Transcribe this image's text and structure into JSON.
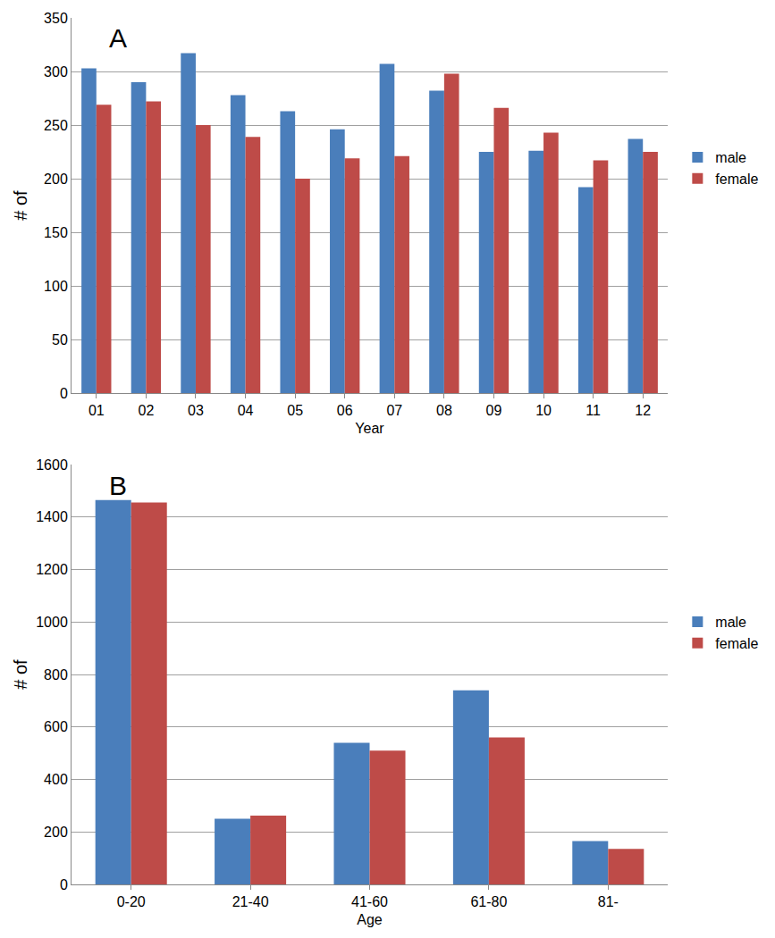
{
  "chart_data": [
    {
      "type": "bar",
      "annotations": [
        "A"
      ],
      "x_label": "Year",
      "y_label": "# of",
      "categories": [
        "01",
        "02",
        "03",
        "04",
        "05",
        "06",
        "07",
        "08",
        "09",
        "10",
        "11",
        "12"
      ],
      "series": [
        {
          "name": "male",
          "color": "#4a7ebb",
          "values": [
            303,
            290,
            317,
            278,
            263,
            246,
            307,
            282,
            225,
            226,
            192,
            237
          ]
        },
        {
          "name": "female",
          "color": "#be4b48",
          "values": [
            269,
            272,
            250,
            239,
            200,
            219,
            221,
            298,
            266,
            243,
            217,
            225
          ]
        }
      ],
      "ylim": [
        0,
        350
      ],
      "yticks": [
        0,
        50,
        100,
        150,
        200,
        250,
        300,
        350
      ],
      "grid": true,
      "legend": "right"
    },
    {
      "type": "bar",
      "annotations": [
        "B"
      ],
      "x_label": "Age",
      "y_label": "# of",
      "categories": [
        "0-20",
        "21-40",
        "41-60",
        "61-80",
        "81-"
      ],
      "series": [
        {
          "name": "male",
          "color": "#4a7ebb",
          "values": [
            1465,
            250,
            540,
            740,
            165
          ]
        },
        {
          "name": "female",
          "color": "#be4b48",
          "values": [
            1455,
            262,
            510,
            560,
            135
          ]
        }
      ],
      "ylim": [
        0,
        1600
      ],
      "yticks": [
        0,
        200,
        400,
        600,
        800,
        1000,
        1200,
        1400,
        1600
      ],
      "grid": true,
      "legend": "right"
    }
  ]
}
